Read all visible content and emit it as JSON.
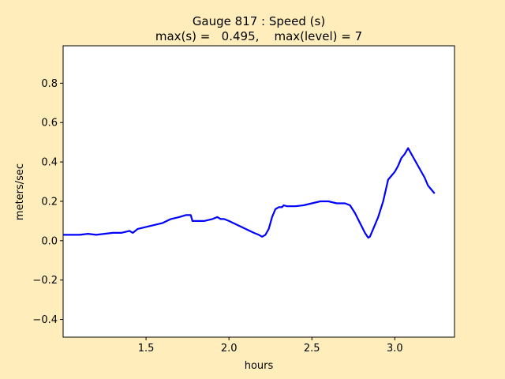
{
  "chart_data": {
    "type": "line",
    "title_line1": "Gauge 817 : Speed (s)",
    "title_line2": "max(s) =   0.495,    max(level) = 7",
    "xlabel": "hours",
    "ylabel": "meters/sec",
    "xlim": [
      1.0,
      3.36
    ],
    "ylim": [
      -0.49,
      0.99
    ],
    "xticks": [
      {
        "value": 1.5,
        "label": "1.5"
      },
      {
        "value": 2.0,
        "label": "2.0"
      },
      {
        "value": 2.5,
        "label": "2.5"
      },
      {
        "value": 3.0,
        "label": "3.0"
      }
    ],
    "yticks": [
      {
        "value": -0.4,
        "label": "−0.4"
      },
      {
        "value": -0.2,
        "label": "−0.2"
      },
      {
        "value": 0.0,
        "label": "0.0"
      },
      {
        "value": 0.2,
        "label": "0.2"
      },
      {
        "value": 0.4,
        "label": "0.4"
      },
      {
        "value": 0.6,
        "label": "0.6"
      },
      {
        "value": 0.8,
        "label": "0.8"
      }
    ],
    "grid": false,
    "series": [
      {
        "color": "#0000ff",
        "x": [
          1.0,
          1.05,
          1.1,
          1.15,
          1.2,
          1.25,
          1.3,
          1.35,
          1.4,
          1.42,
          1.45,
          1.5,
          1.55,
          1.6,
          1.65,
          1.7,
          1.74,
          1.77,
          1.78,
          1.8,
          1.85,
          1.9,
          1.93,
          1.95,
          1.97,
          2.0,
          2.05,
          2.1,
          2.15,
          2.18,
          2.2,
          2.22,
          2.24,
          2.26,
          2.28,
          2.3,
          2.32,
          2.33,
          2.35,
          2.4,
          2.45,
          2.5,
          2.55,
          2.6,
          2.65,
          2.7,
          2.73,
          2.76,
          2.79,
          2.82,
          2.84,
          2.85,
          2.87,
          2.9,
          2.93,
          2.96,
          2.98,
          3.0,
          3.02,
          3.04,
          3.06,
          3.08,
          3.1,
          3.12,
          3.14,
          3.16,
          3.18,
          3.2,
          3.22,
          3.24
        ],
        "y": [
          0.03,
          0.03,
          0.03,
          0.035,
          0.03,
          0.035,
          0.04,
          0.04,
          0.05,
          0.04,
          0.06,
          0.07,
          0.08,
          0.09,
          0.11,
          0.12,
          0.13,
          0.13,
          0.1,
          0.1,
          0.1,
          0.11,
          0.12,
          0.11,
          0.11,
          0.1,
          0.08,
          0.06,
          0.04,
          0.03,
          0.02,
          0.03,
          0.06,
          0.12,
          0.16,
          0.17,
          0.17,
          0.18,
          0.175,
          0.175,
          0.18,
          0.19,
          0.2,
          0.2,
          0.19,
          0.19,
          0.18,
          0.14,
          0.09,
          0.04,
          0.015,
          0.02,
          0.06,
          0.12,
          0.2,
          0.31,
          0.33,
          0.35,
          0.38,
          0.42,
          0.44,
          0.47,
          0.44,
          0.41,
          0.38,
          0.35,
          0.32,
          0.28,
          0.26,
          0.24
        ]
      }
    ]
  }
}
